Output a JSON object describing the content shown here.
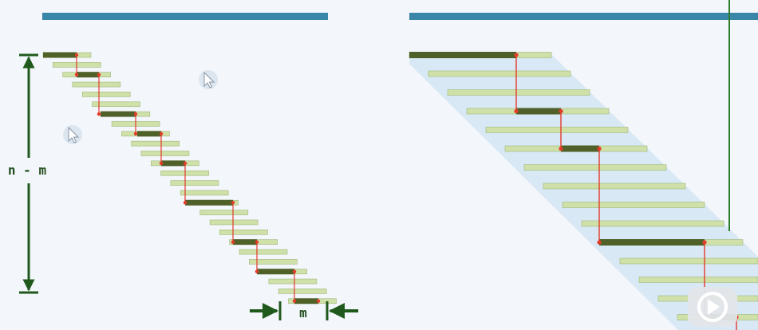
{
  "labels": {
    "height": "n - m",
    "width": "m"
  },
  "colors": {
    "background": "#f3f6fb",
    "header_bar": "#3a86a8",
    "bar_light": "#cfe0a9",
    "bar_light_edge": "#9fb77a",
    "bar_dark": "#4f6128",
    "connector": "#e53b2a",
    "dimension": "#1f5a1c",
    "band_fill": "#cfe3f1",
    "divider": "#2e7d2e"
  },
  "icons": {
    "cursor_1": "mouse-pointer-icon",
    "cursor_2": "mouse-pointer-icon",
    "play_button": "play-button-icon"
  }
}
